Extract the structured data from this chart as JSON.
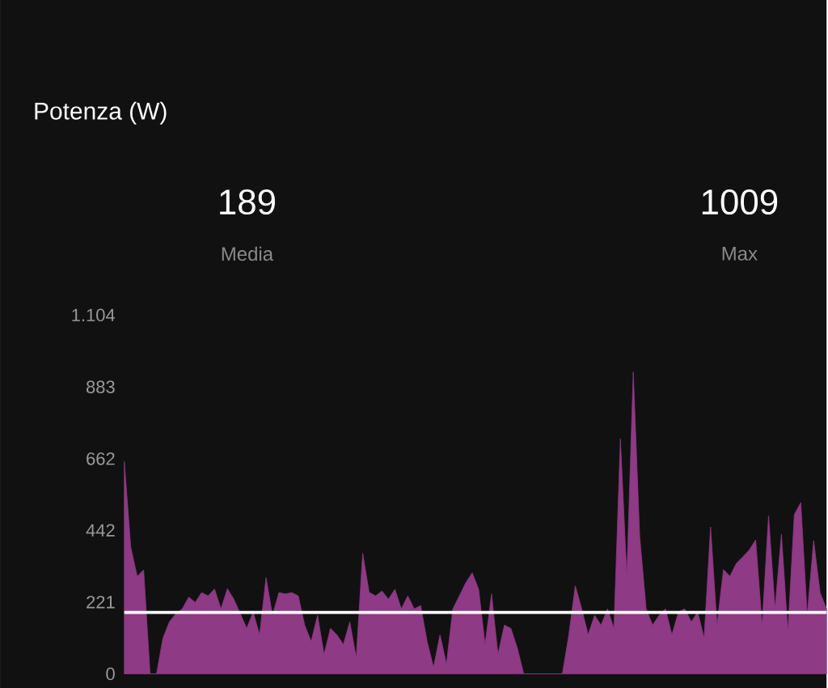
{
  "chart_data": {
    "type": "area",
    "title": "Potenza (W)",
    "annotations": [
      "189",
      "Media",
      "1009",
      "Max"
    ],
    "categories": [
      null,
      null,
      null,
      null,
      null,
      null,
      null,
      null,
      null,
      null,
      null,
      null,
      null,
      null,
      null,
      null,
      null,
      null,
      null,
      null,
      null,
      null,
      null,
      null,
      null,
      null,
      null,
      null,
      null,
      null,
      null,
      null,
      null,
      null,
      null,
      null,
      null,
      null,
      null,
      null,
      null,
      null,
      null,
      null,
      null,
      null,
      null,
      null,
      null,
      null,
      null,
      null,
      null,
      null,
      null,
      null,
      null,
      null,
      null,
      null,
      null,
      null,
      null,
      null,
      null,
      null,
      null,
      null,
      null,
      null,
      null,
      null,
      null,
      null,
      null,
      null,
      null,
      null,
      null,
      null,
      null,
      null,
      null,
      null,
      null,
      null,
      null,
      null,
      null,
      null,
      null,
      null,
      null,
      null,
      null,
      null,
      null,
      null,
      null,
      null,
      null,
      null,
      null,
      null,
      null,
      null,
      null,
      null,
      null,
      null
    ],
    "values": [
      653,
      390,
      300,
      320,
      0,
      0,
      110,
      160,
      185,
      200,
      236,
      220,
      250,
      240,
      261,
      200,
      262,
      230,
      185,
      140,
      190,
      120,
      296,
      180,
      250,
      246,
      250,
      240,
      150,
      100,
      180,
      60,
      140,
      120,
      90,
      160,
      50,
      371,
      251,
      240,
      255,
      230,
      260,
      200,
      240,
      200,
      210,
      100,
      20,
      120,
      30,
      200,
      240,
      280,
      311,
      260,
      90,
      246,
      60,
      150,
      140,
      80,
      0,
      0,
      0,
      0,
      0,
      0,
      0,
      120,
      271,
      200,
      120,
      180,
      150,
      200,
      140,
      723,
      300,
      929,
      422,
      200,
      150,
      180,
      200,
      120,
      190,
      200,
      160,
      190,
      110,
      452,
      150,
      321,
      300,
      340,
      360,
      381,
      412,
      150,
      487,
      200,
      430,
      130,
      490,
      527,
      180,
      410,
      250,
      200
    ],
    "color": "#8e3a84",
    "ylim": [
      0,
      1104
    ],
    "yticks": [
      0,
      221,
      442,
      662,
      883,
      {
        "value": 1104,
        "label": "1.104"
      }
    ],
    "ref_lines": [
      {
        "axis": "y",
        "value": 189,
        "color": "#ffffff"
      }
    ],
    "grid": false
  }
}
